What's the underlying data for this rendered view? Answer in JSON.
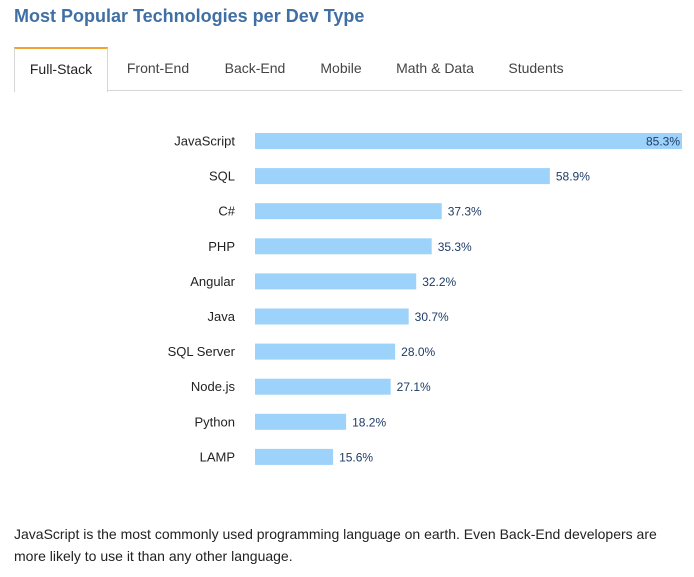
{
  "title": "Most Popular Technologies per Dev Type",
  "tabs": [
    {
      "label": "Full-Stack",
      "active": true
    },
    {
      "label": "Front-End",
      "active": false
    },
    {
      "label": "Back-End",
      "active": false
    },
    {
      "label": "Mobile",
      "active": false
    },
    {
      "label": "Math & Data",
      "active": false
    },
    {
      "label": "Students",
      "active": false
    }
  ],
  "colors": {
    "title": "#3f6fa5",
    "bar": "#9dd2fb",
    "active_tab_accent": "#f0a330",
    "value_text": "#1e3d66"
  },
  "chart_data": {
    "type": "bar",
    "orientation": "horizontal",
    "title": "",
    "xlabel": "",
    "ylabel": "",
    "xlim": [
      0,
      85.3
    ],
    "grid": false,
    "legend": "none",
    "categories": [
      "JavaScript",
      "SQL",
      "C#",
      "PHP",
      "Angular",
      "Java",
      "SQL Server",
      "Node.js",
      "Python",
      "LAMP"
    ],
    "values": [
      85.3,
      58.9,
      37.3,
      35.3,
      32.2,
      30.7,
      28.0,
      27.1,
      18.2,
      15.6
    ],
    "value_labels": [
      "85.3%",
      "58.9%",
      "37.3%",
      "35.3%",
      "32.2%",
      "30.7%",
      "28.0%",
      "27.1%",
      "18.2%",
      "15.6%"
    ]
  },
  "note": "JavaScript is the most commonly used programming language on earth. Even Back-End developers are more likely to use it than any other language."
}
